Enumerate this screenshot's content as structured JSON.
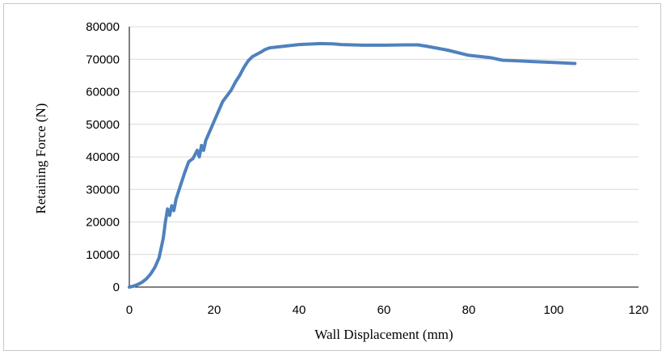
{
  "chart_data": {
    "type": "line",
    "title": "",
    "xlabel": "Wall Displacement (mm)",
    "ylabel": "Retaining Force (N)",
    "xlim": [
      0,
      120
    ],
    "ylim": [
      0,
      80000
    ],
    "x_ticks": [
      0,
      20,
      40,
      60,
      80,
      100,
      120
    ],
    "y_ticks": [
      0,
      10000,
      20000,
      30000,
      40000,
      50000,
      60000,
      70000,
      80000
    ],
    "grid": "horizontal-major",
    "legend": "none",
    "series": [
      {
        "color": "#4f81bd",
        "x": [
          0,
          1,
          2,
          3,
          4,
          5,
          6,
          7,
          8,
          8.5,
          9,
          9.5,
          10,
          10.5,
          11,
          12,
          13,
          14,
          15,
          16,
          16.5,
          17,
          17.5,
          18,
          19,
          20,
          22,
          24,
          25,
          26,
          27,
          28,
          29,
          30,
          31,
          32,
          33,
          35,
          38,
          40,
          45,
          48,
          50,
          55,
          60,
          65,
          68,
          70,
          75,
          80,
          85,
          88,
          90,
          95,
          100,
          105
        ],
        "y": [
          0,
          300,
          800,
          1500,
          2500,
          4000,
          6000,
          9000,
          15000,
          20000,
          24000,
          22000,
          25000,
          23500,
          27000,
          31000,
          35000,
          38500,
          39500,
          42000,
          40000,
          43500,
          42000,
          45000,
          48000,
          51000,
          57000,
          60500,
          63000,
          65000,
          67500,
          69500,
          70800,
          71500,
          72200,
          73000,
          73500,
          73800,
          74200,
          74500,
          74800,
          74700,
          74500,
          74300,
          74300,
          74400,
          74400,
          74000,
          72800,
          71200,
          70500,
          69700,
          69600,
          69300,
          69000,
          68700
        ]
      }
    ]
  }
}
